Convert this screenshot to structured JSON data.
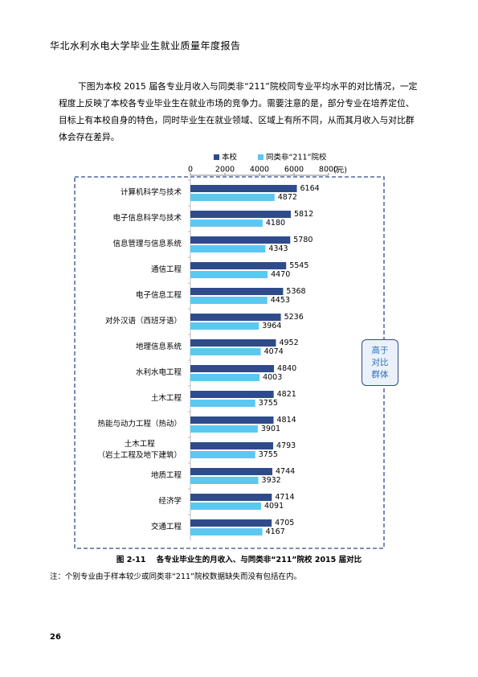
{
  "header": {
    "title": "华北水利水电大学毕业生就业质量年度报告"
  },
  "paragraph": {
    "lines": [
      "下图为本校 2015 届各专业月收入与同类非“211”院校同专业平均水平的对比情况，一定",
      "程度上反映了本校各专业毕业生在就业市场的竞争力。需要注意的是，部分专业在培养定位、",
      "目标上有本校自身的特色，同时毕业生在就业领域、区域上有所不同，从而其月收入与对比群",
      "体会存在差异。"
    ]
  },
  "chart_data": {
    "type": "hbar",
    "categories": [
      "计算机科学与技术",
      "电子信息科学与技术",
      "信息管理与信息系统",
      "通信工程",
      "电子信息工程",
      "对外汉语（西班牙语）",
      "地理信息系统",
      "水利水电工程",
      "土木工程",
      "热能与动力工程（热动）",
      "土木工程\n（岩土工程及地下建筑）",
      "地质工程",
      "经济学",
      "交通工程"
    ],
    "series": [
      {
        "name": "本校",
        "color": "#2f4b8c",
        "values": [
          6164,
          5812,
          5780,
          5545,
          5368,
          5236,
          4952,
          4840,
          4821,
          4814,
          4793,
          4744,
          4714,
          4705
        ]
      },
      {
        "name": "同类非“211”院校",
        "color": "#5bc8f0",
        "values": [
          4872,
          4180,
          4343,
          4470,
          4453,
          3964,
          4074,
          4003,
          3755,
          3901,
          3755,
          3932,
          4091,
          4167
        ]
      }
    ],
    "xlim": [
      0,
      8000
    ],
    "xticks": [
      0,
      2000,
      4000,
      6000,
      8000
    ],
    "x_label": "(元)",
    "annotation": "高于对比群体",
    "caption": "图 2-11    各专业毕业生的月收入、与同类非“211”院校 2015 届对比"
  },
  "note": "注：个别专业由于样本较少或同类非“211”院校数据缺失而没有包括在内。",
  "page_number": "26"
}
